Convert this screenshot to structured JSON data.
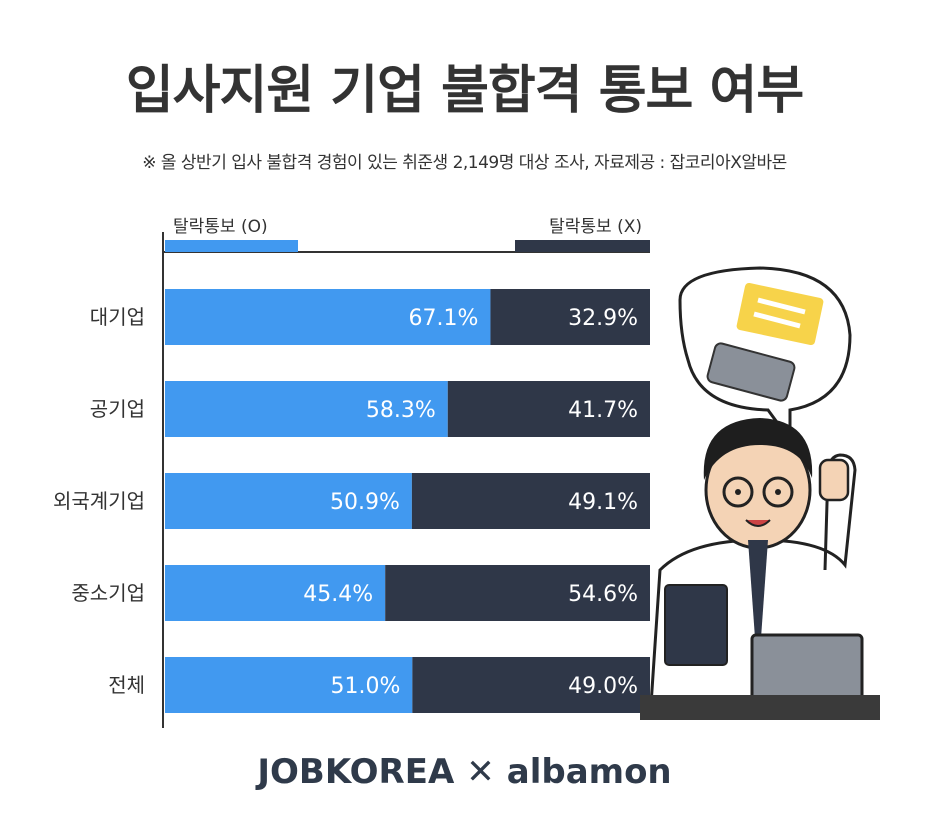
{
  "title": "입사지원 기업 불합격 통보 여부",
  "subtitle": "※ 올 상반기 입사 불합격 경험이 있는 취준생 2,149명 대상 조사, 자료제공 : 잡코리아X알바몬",
  "footer": {
    "brand1": "JOBKOREA",
    "separator": "✕",
    "brand2": "albamon"
  },
  "colors": {
    "notified": "#4199f0",
    "not_notified": "#2f3748"
  },
  "chart_data": {
    "type": "bar",
    "stacked": true,
    "orientation": "horizontal",
    "categories": [
      "대기업",
      "공기업",
      "외국계기업",
      "중소기업",
      "전체"
    ],
    "series": [
      {
        "name": "탈락통보 (O)",
        "values": [
          67.1,
          58.3,
          50.9,
          45.4,
          51.0
        ],
        "labels": [
          "67.1%",
          "58.3%",
          "50.9%",
          "45.4%",
          "51.0%"
        ]
      },
      {
        "name": "탈락통보 (X)",
        "values": [
          32.9,
          41.7,
          49.1,
          54.6,
          49.0
        ],
        "labels": [
          "32.9%",
          "41.7%",
          "49.1%",
          "54.6%",
          "49.0%"
        ]
      }
    ],
    "xlim": [
      0,
      100
    ],
    "legend": "top"
  }
}
